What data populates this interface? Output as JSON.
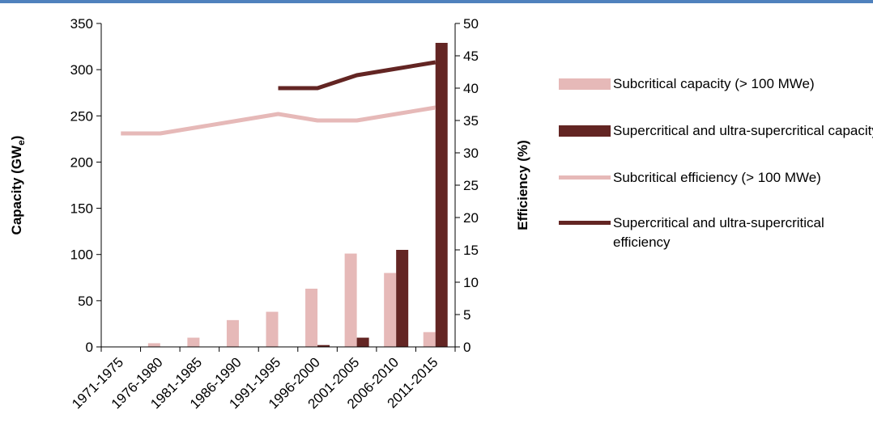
{
  "colors": {
    "subcritical": "#e6b9b8",
    "supercritical": "#632523",
    "frame": "#4f81bd"
  },
  "chart_data": {
    "type": "bar",
    "categories": [
      "1971-1975",
      "1976-1980",
      "1981-1985",
      "1986-1990",
      "1991-1995",
      "1996-2000",
      "2001-2005",
      "2006-2010",
      "2011-2015"
    ],
    "ylabel": "Capacity (GW",
    "ylabel_subscript": "e",
    "ylabel_end": ")",
    "y2label": "Efficiency (%)",
    "ylim": [
      0,
      350
    ],
    "y2lim": [
      0,
      50
    ],
    "yticks": [
      0,
      50,
      100,
      150,
      200,
      250,
      300,
      350
    ],
    "y2ticks": [
      0,
      5,
      10,
      15,
      20,
      25,
      30,
      35,
      40,
      45,
      50
    ],
    "grid": false,
    "legend_position": "right",
    "series": [
      {
        "name": "Subcritical capacity (> 100 MWe)",
        "type": "bar",
        "axis": "left",
        "values": [
          0,
          4,
          10,
          29,
          38,
          63,
          101,
          80,
          16
        ]
      },
      {
        "name": "Supercritical and ultra-supercritical capacity",
        "type": "bar",
        "axis": "left",
        "values": [
          0,
          0,
          0,
          0,
          0,
          2,
          10,
          105,
          329
        ]
      },
      {
        "name": "Subcritical efficiency (> 100 MWe)",
        "type": "line",
        "axis": "right",
        "values": [
          33,
          33,
          34,
          35,
          36,
          35,
          35,
          36,
          37
        ]
      },
      {
        "name": "Supercritical and ultra-supercritical efficiency",
        "type": "line",
        "axis": "right",
        "values": [
          null,
          null,
          null,
          null,
          40,
          40,
          42,
          43,
          44
        ]
      }
    ]
  }
}
